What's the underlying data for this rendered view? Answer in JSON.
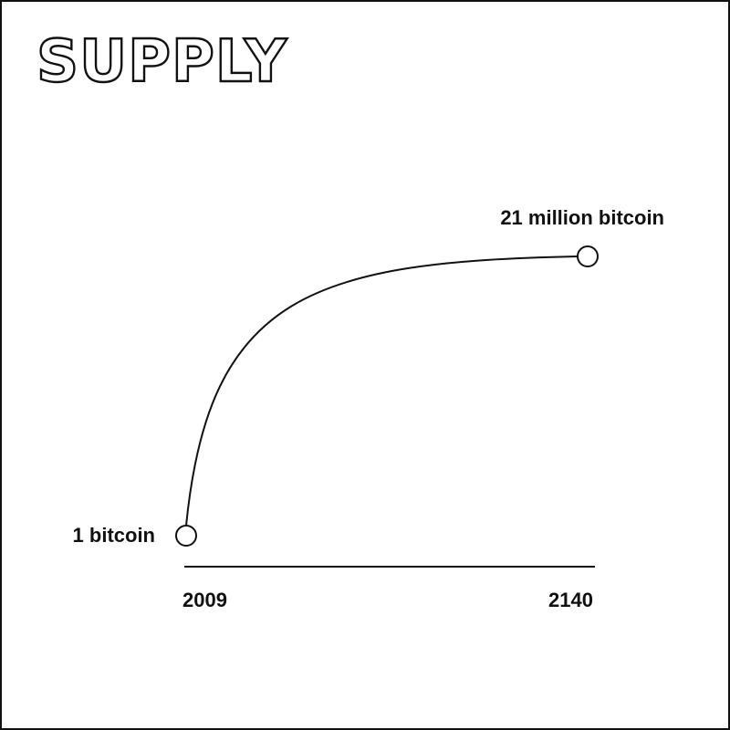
{
  "chart_data": {
    "type": "line",
    "title": "SUPPLY",
    "x_ticks": [
      "2009",
      "2140"
    ],
    "xlim": [
      2009,
      2140
    ],
    "series": [
      {
        "points": [
          {
            "x": 2009,
            "label": "1 bitcoin"
          },
          {
            "x": 2140,
            "label": "21 million bitcoin"
          }
        ]
      }
    ],
    "grid": false,
    "legend": "none"
  },
  "colors": {
    "ink": "#111111",
    "background": "#ffffff"
  }
}
